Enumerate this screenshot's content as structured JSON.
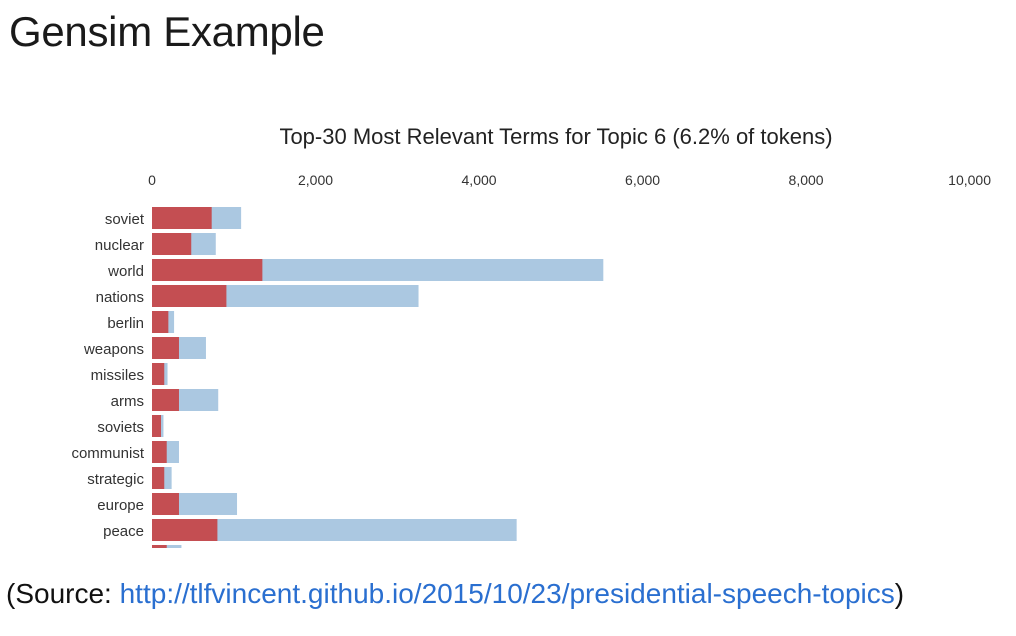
{
  "slide": {
    "title": "Gensim Example",
    "source_prefix": "(Source: ",
    "source_link": "http://tlfvincent.github.io/2015/10/23/presidential-speech-topics",
    "source_suffix": ")"
  },
  "colors": {
    "overall": "#abc8e1",
    "estimated": "#c44e52"
  },
  "chart_data": {
    "type": "bar",
    "orientation": "horizontal",
    "title": "Top-30 Most Relevant Terms for Topic 6 (6.2% of tokens)",
    "xlim": [
      0,
      10000
    ],
    "xticks": [
      "0",
      "2,000",
      "4,000",
      "6,000",
      "8,000",
      "10,000"
    ],
    "xtick_values": [
      0,
      2000,
      4000,
      6000,
      8000,
      10000
    ],
    "categories": [
      "soviet",
      "nuclear",
      "world",
      "nations",
      "berlin",
      "weapons",
      "missiles",
      "arms",
      "soviets",
      "communist",
      "strategic",
      "europe",
      "peace",
      ""
    ],
    "series": [
      {
        "values": [
          1090,
          780,
          5520,
          3260,
          270,
          660,
          190,
          810,
          140,
          330,
          240,
          1040,
          4460,
          360
        ]
      },
      {
        "values": [
          730,
          480,
          1350,
          910,
          200,
          330,
          150,
          330,
          110,
          180,
          150,
          330,
          800,
          180
        ]
      }
    ],
    "grid": false,
    "legend": "none"
  }
}
